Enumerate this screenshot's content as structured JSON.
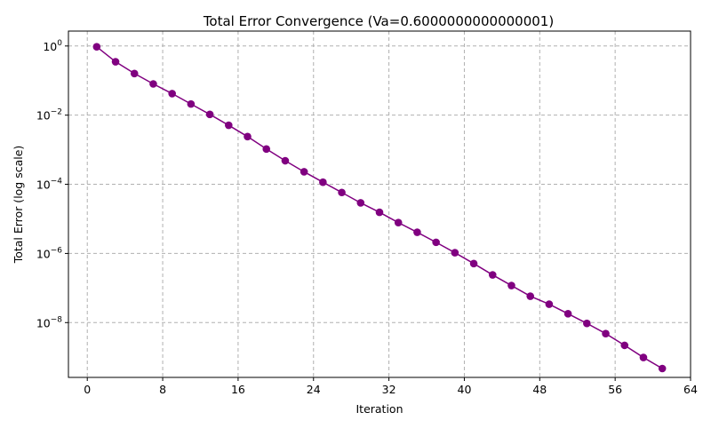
{
  "chart_data": {
    "type": "line",
    "title": "Total Error Convergence (Va=0.6000000000000001)",
    "xlabel": "Iteration",
    "ylabel": "Total Error (log scale)",
    "xlim": [
      -2,
      64
    ],
    "ylim": [
      2.6e-10,
      2.7
    ],
    "yscale": "log",
    "grid": true,
    "x_ticks": [
      0,
      8,
      16,
      24,
      32,
      40,
      48,
      56,
      64
    ],
    "y_ticks": [
      {
        "value": 1,
        "base": "10",
        "exp": "0"
      },
      {
        "value": 0.01,
        "base": "10",
        "exp": "−2"
      },
      {
        "value": 0.0001,
        "base": "10",
        "exp": "−4"
      },
      {
        "value": 1e-06,
        "base": "10",
        "exp": "−6"
      },
      {
        "value": 1e-08,
        "base": "10",
        "exp": "−8"
      }
    ],
    "series": [
      {
        "color": "#800080",
        "x": [
          1,
          3,
          5,
          7,
          9,
          11,
          13,
          15,
          17,
          19,
          21,
          23,
          25,
          27,
          29,
          31,
          33,
          35,
          37,
          39,
          41,
          43,
          45,
          47,
          49,
          51,
          53,
          55,
          57,
          59,
          61
        ],
        "y": [
          0.95,
          0.35,
          0.16,
          0.08,
          0.042,
          0.021,
          0.0105,
          0.0051,
          0.0024,
          0.00105,
          0.00048,
          0.00023,
          0.000115,
          5.8e-05,
          2.9e-05,
          1.55e-05,
          7.8e-06,
          4.1e-06,
          2.1e-06,
          1.05e-06,
          5.1e-07,
          2.4e-07,
          1.18e-07,
          5.8e-08,
          3.4e-08,
          1.8e-08,
          9.5e-09,
          4.8e-09,
          2.2e-09,
          9.8e-10,
          4.7e-10
        ]
      }
    ]
  }
}
